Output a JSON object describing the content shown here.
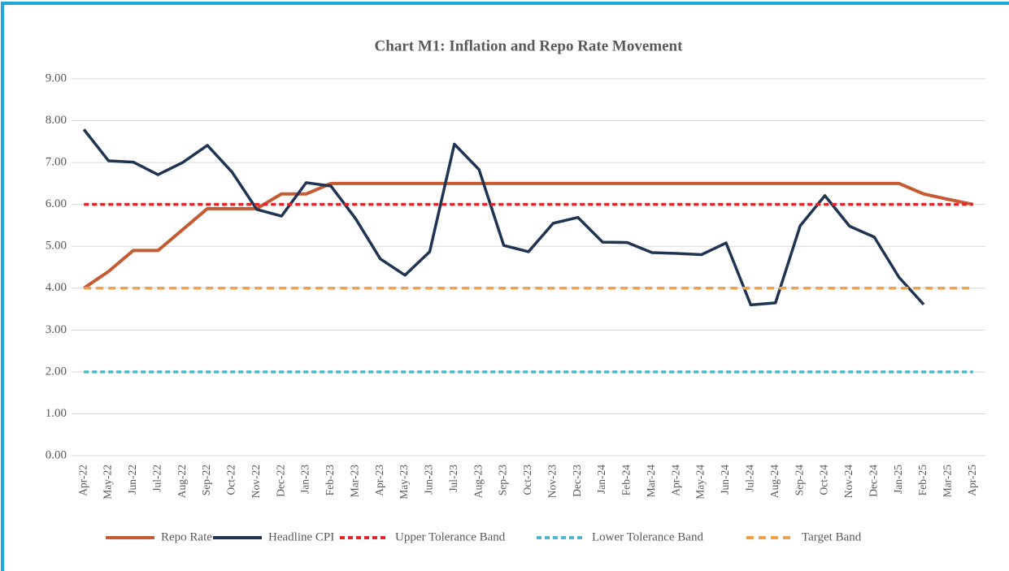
{
  "chart_data": {
    "type": "line",
    "title": "Chart M1: Inflation and Repo Rate Movement",
    "categories": [
      "Apr-22",
      "May-22",
      "Jun-22",
      "Jul-22",
      "Aug-22",
      "Sep-22",
      "Oct-22",
      "Nov-22",
      "Dec-22",
      "Jan-23",
      "Feb-23",
      "Mar-23",
      "Apr-23",
      "May-23",
      "Jun-23",
      "Jul-23",
      "Aug-23",
      "Sep-23",
      "Oct-23",
      "Nov-23",
      "Dec-23",
      "Jan-24",
      "Feb-24",
      "Mar-24",
      "Apr-24",
      "May-24",
      "Jun-24",
      "Jul-24",
      "Aug-24",
      "Sep-24",
      "Oct-24",
      "Nov-24",
      "Dec-24",
      "Jan-25",
      "Feb-25",
      "Mar-25",
      "Apr-25"
    ],
    "series": [
      {
        "name": "Repo Rate",
        "color": "#c55a33",
        "dashed": false,
        "values": [
          4.0,
          4.4,
          4.9,
          4.9,
          5.4,
          5.9,
          5.9,
          5.9,
          6.25,
          6.25,
          6.5,
          6.5,
          6.5,
          6.5,
          6.5,
          6.5,
          6.5,
          6.5,
          6.5,
          6.5,
          6.5,
          6.5,
          6.5,
          6.5,
          6.5,
          6.5,
          6.5,
          6.5,
          6.5,
          6.5,
          6.5,
          6.5,
          6.5,
          6.5,
          6.25,
          6.12,
          6.0
        ]
      },
      {
        "name": "Headline CPI",
        "color": "#1f3352",
        "dashed": false,
        "values": [
          7.79,
          7.04,
          7.01,
          6.71,
          7.0,
          7.41,
          6.77,
          5.88,
          5.72,
          6.52,
          6.44,
          5.66,
          4.7,
          4.31,
          4.87,
          7.44,
          6.83,
          5.02,
          4.87,
          5.55,
          5.69,
          5.1,
          5.09,
          4.85,
          4.83,
          4.8,
          5.08,
          3.6,
          3.65,
          5.49,
          6.21,
          5.48,
          5.22,
          4.26,
          3.61,
          null,
          null
        ]
      },
      {
        "name": "Upper Tolerance Band",
        "color": "#e0262c",
        "dashed": true,
        "values": [
          6,
          6,
          6,
          6,
          6,
          6,
          6,
          6,
          6,
          6,
          6,
          6,
          6,
          6,
          6,
          6,
          6,
          6,
          6,
          6,
          6,
          6,
          6,
          6,
          6,
          6,
          6,
          6,
          6,
          6,
          6,
          6,
          6,
          6,
          6,
          6,
          6
        ]
      },
      {
        "name": "Lower Tolerance Band",
        "color": "#4bb8c9",
        "dashed": true,
        "values": [
          2,
          2,
          2,
          2,
          2,
          2,
          2,
          2,
          2,
          2,
          2,
          2,
          2,
          2,
          2,
          2,
          2,
          2,
          2,
          2,
          2,
          2,
          2,
          2,
          2,
          2,
          2,
          2,
          2,
          2,
          2,
          2,
          2,
          2,
          2,
          2,
          2
        ]
      },
      {
        "name": "Target Band",
        "color": "#f0a04a",
        "dashed": true,
        "values": [
          4,
          4,
          4,
          4,
          4,
          4,
          4,
          4,
          4,
          4,
          4,
          4,
          4,
          4,
          4,
          4,
          4,
          4,
          4,
          4,
          4,
          4,
          4,
          4,
          4,
          4,
          4,
          4,
          4,
          4,
          4,
          4,
          4,
          4,
          4,
          4,
          4
        ]
      }
    ],
    "ylim": [
      0,
      9
    ],
    "yticks": [
      {
        "value": 0,
        "label": "0.00"
      },
      {
        "value": 1,
        "label": "1.00"
      },
      {
        "value": 2,
        "label": "2.00"
      },
      {
        "value": 3,
        "label": "3.00"
      },
      {
        "value": 4,
        "label": "4.00"
      },
      {
        "value": 5,
        "label": "5.00"
      },
      {
        "value": 6,
        "label": "6.00"
      },
      {
        "value": 7,
        "label": "7.00"
      },
      {
        "value": 8,
        "label": "8.00"
      },
      {
        "value": 9,
        "label": "9.00"
      }
    ],
    "grid": true,
    "legend": "bottom"
  }
}
